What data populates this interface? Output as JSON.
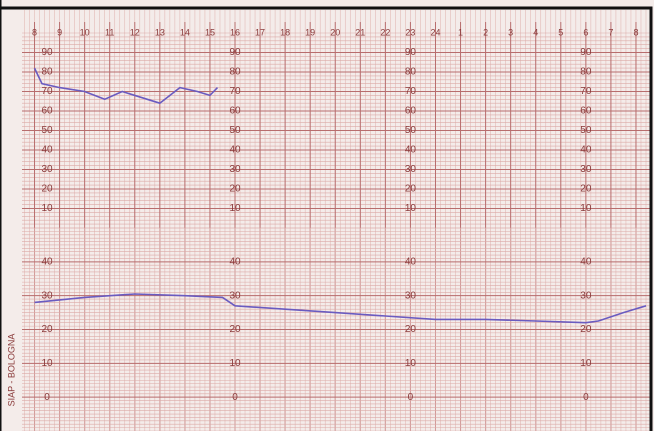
{
  "imprint": "SIAP - BOLOGNA",
  "chart_data": [
    {
      "type": "line",
      "xlim": [
        -0.5,
        24.6
      ],
      "xticks": [
        {
          "value": 0,
          "label": "8"
        },
        {
          "value": 1,
          "label": "9"
        },
        {
          "value": 2,
          "label": "10"
        },
        {
          "value": 3,
          "label": "11"
        },
        {
          "value": 4,
          "label": "12"
        },
        {
          "value": 5,
          "label": "13"
        },
        {
          "value": 6,
          "label": "14"
        },
        {
          "value": 7,
          "label": "15"
        },
        {
          "value": 8,
          "label": "16"
        },
        {
          "value": 9,
          "label": "17"
        },
        {
          "value": 10,
          "label": "18"
        },
        {
          "value": 11,
          "label": "19"
        },
        {
          "value": 12,
          "label": "20"
        },
        {
          "value": 13,
          "label": "21"
        },
        {
          "value": 14,
          "label": "22"
        },
        {
          "value": 15,
          "label": "23"
        },
        {
          "value": 16,
          "label": "24"
        },
        {
          "value": 17,
          "label": "1"
        },
        {
          "value": 18,
          "label": "2"
        },
        {
          "value": 19,
          "label": "3"
        },
        {
          "value": 20,
          "label": "4"
        },
        {
          "value": 21,
          "label": "5"
        },
        {
          "value": 22,
          "label": "6"
        },
        {
          "value": 23,
          "label": "7"
        },
        {
          "value": 24,
          "label": "8"
        }
      ],
      "ylim": [
        0,
        100
      ],
      "yticks": [
        10,
        20,
        30,
        40,
        50,
        60,
        70,
        80,
        90
      ],
      "grid": true,
      "series": [
        {
          "color": "#6a5bc0",
          "x": [
            0,
            0.3,
            1,
            2,
            2.8,
            3.5,
            4.5,
            5,
            5.8,
            6.5,
            7,
            7.3
          ],
          "values": [
            82,
            74,
            72,
            70,
            66,
            70,
            66,
            64,
            72,
            70,
            68,
            72
          ]
        }
      ]
    },
    {
      "type": "line",
      "xlim": [
        -0.5,
        24.6
      ],
      "ylim": [
        -10,
        50
      ],
      "yticks": [
        0,
        10,
        20,
        30,
        40
      ],
      "grid": true,
      "series": [
        {
          "color": "#6a5bc0",
          "x": [
            0,
            2,
            4,
            6,
            7.5,
            8,
            10,
            12,
            14,
            16,
            18,
            20,
            22,
            22.5,
            23.5,
            24.4
          ],
          "values": [
            28,
            29.5,
            30.5,
            30,
            29.5,
            27,
            26,
            25,
            24,
            23,
            23,
            22.5,
            22,
            22.5,
            25,
            27
          ]
        }
      ]
    }
  ]
}
